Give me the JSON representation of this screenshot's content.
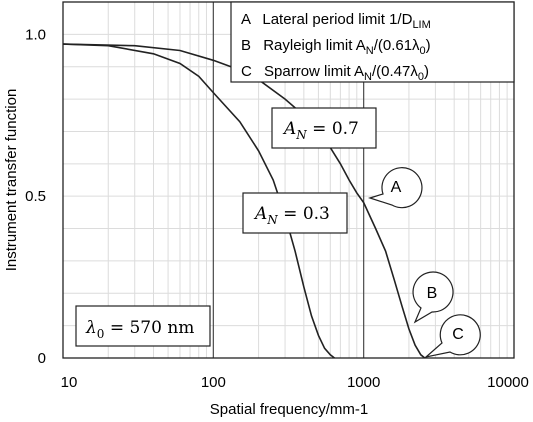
{
  "chart_data": {
    "type": "line",
    "x_scale": "log",
    "xlim": [
      10,
      10000
    ],
    "ylim": [
      0,
      1.1
    ],
    "xlabel": "Spatial frequency/mm-1",
    "ylabel": "Instrument transfer function",
    "x_ticks": [
      "10",
      "100",
      "1000",
      "10000"
    ],
    "y_ticks": [
      {
        "value": 0,
        "label": "0"
      },
      {
        "value": 0.5,
        "label": "0.5"
      },
      {
        "value": 1.0,
        "label": "1.0"
      }
    ],
    "grid": true,
    "series": [
      {
        "name": "A_N = 0.3",
        "x": [
          10,
          20,
          40,
          60,
          80,
          100,
          150,
          200,
          250,
          300,
          350,
          400,
          450,
          500,
          550,
          600,
          640
        ],
        "y": [
          0.97,
          0.965,
          0.94,
          0.91,
          0.87,
          0.82,
          0.73,
          0.64,
          0.55,
          0.44,
          0.33,
          0.22,
          0.13,
          0.07,
          0.03,
          0.01,
          0.0
        ]
      },
      {
        "name": "A_N = 0.7",
        "x": [
          10,
          30,
          60,
          100,
          150,
          200,
          300,
          400,
          500,
          600,
          700,
          800,
          900,
          1000,
          1200,
          1400,
          1600,
          1800,
          2000,
          2200,
          2400,
          2550
        ],
        "y": [
          0.97,
          0.965,
          0.95,
          0.92,
          0.89,
          0.86,
          0.8,
          0.75,
          0.7,
          0.65,
          0.6,
          0.55,
          0.51,
          0.48,
          0.4,
          0.33,
          0.24,
          0.16,
          0.09,
          0.04,
          0.01,
          0.0
        ]
      }
    ],
    "vertical_lines": [
      100,
      1000
    ],
    "curve_labels": [
      {
        "text": "A_N = 0.7",
        "main": "A",
        "sub": "N",
        "rest": " = 0.7"
      },
      {
        "text": "A_N = 0.3",
        "main": "A",
        "sub": "N",
        "rest": " = 0.3"
      }
    ],
    "legend": {
      "placement": "top-right",
      "entries": [
        {
          "key": "A",
          "text": "Lateral period limit 1/D",
          "sub": "LIM"
        },
        {
          "key": "B",
          "text": "Rayleigh limit A",
          "sub": "N",
          "tail": "/(0.61λ",
          "sub2": "0",
          "tail2": ")"
        },
        {
          "key": "C",
          "text": "Sparrow limit A",
          "sub": "N",
          "tail": "/(0.47λ",
          "sub2": "0",
          "tail2": ")"
        }
      ]
    },
    "markers": [
      {
        "label": "A",
        "x": 950,
        "y": 0.48
      },
      {
        "label": "B",
        "x": 1950,
        "y": 0.03
      },
      {
        "label": "C",
        "x": 2450,
        "y": 0.0
      }
    ],
    "annotation": {
      "text": "λ0 = 570 nm",
      "main": "λ",
      "sub": "0",
      "rest": " = 570 nm"
    }
  }
}
